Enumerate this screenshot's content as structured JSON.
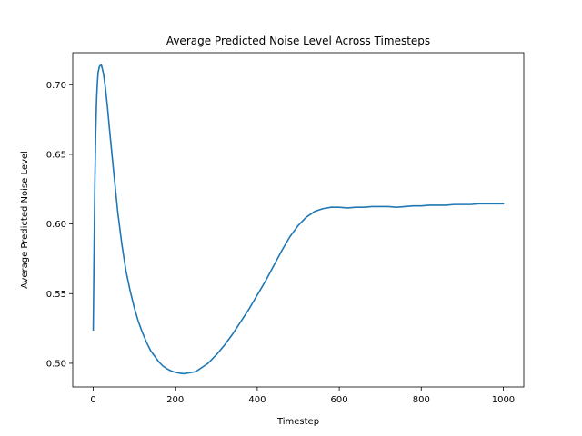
{
  "chart_data": {
    "type": "line",
    "title": "Average Predicted Noise Level Across Timesteps",
    "xlabel": "Timestep",
    "ylabel": "Average Predicted Noise Level",
    "xlim": [
      -50,
      1050
    ],
    "ylim": [
      0.483,
      0.723
    ],
    "xticks": [
      0,
      200,
      400,
      600,
      800,
      1000
    ],
    "xtick_labels": [
      "0",
      "200",
      "400",
      "600",
      "800",
      "1000"
    ],
    "yticks": [
      0.5,
      0.55,
      0.6,
      0.65,
      0.7
    ],
    "ytick_labels": [
      "0.50",
      "0.55",
      "0.60",
      "0.65",
      "0.70"
    ],
    "grid": false,
    "legend": "none",
    "series": [
      {
        "color": "#1f77b4",
        "x": [
          0,
          2,
          4,
          6,
          8,
          10,
          12,
          15,
          18,
          20,
          25,
          30,
          35,
          40,
          45,
          50,
          60,
          70,
          80,
          90,
          100,
          110,
          120,
          130,
          140,
          150,
          160,
          170,
          180,
          190,
          200,
          210,
          220,
          230,
          240,
          250,
          260,
          270,
          280,
          290,
          300,
          320,
          340,
          360,
          380,
          400,
          420,
          440,
          460,
          480,
          500,
          520,
          540,
          560,
          580,
          600,
          620,
          640,
          660,
          680,
          700,
          720,
          740,
          760,
          780,
          800,
          820,
          840,
          860,
          880,
          900,
          920,
          940,
          960,
          980,
          1000
        ],
        "y": [
          0.524,
          0.58,
          0.63,
          0.665,
          0.688,
          0.701,
          0.709,
          0.713,
          0.714,
          0.714,
          0.708,
          0.697,
          0.683,
          0.667,
          0.652,
          0.637,
          0.608,
          0.585,
          0.566,
          0.552,
          0.54,
          0.53,
          0.522,
          0.515,
          0.509,
          0.505,
          0.501,
          0.498,
          0.496,
          0.4945,
          0.4935,
          0.493,
          0.4925,
          0.493,
          0.4935,
          0.494,
          0.496,
          0.498,
          0.5,
          0.503,
          0.506,
          0.513,
          0.521,
          0.53,
          0.539,
          0.549,
          0.559,
          0.57,
          0.581,
          0.591,
          0.599,
          0.605,
          0.609,
          0.611,
          0.612,
          0.612,
          0.6115,
          0.612,
          0.612,
          0.6125,
          0.6125,
          0.6125,
          0.612,
          0.6125,
          0.613,
          0.613,
          0.6135,
          0.6135,
          0.6135,
          0.614,
          0.614,
          0.614,
          0.6145,
          0.6145,
          0.6145,
          0.6145
        ]
      }
    ]
  }
}
